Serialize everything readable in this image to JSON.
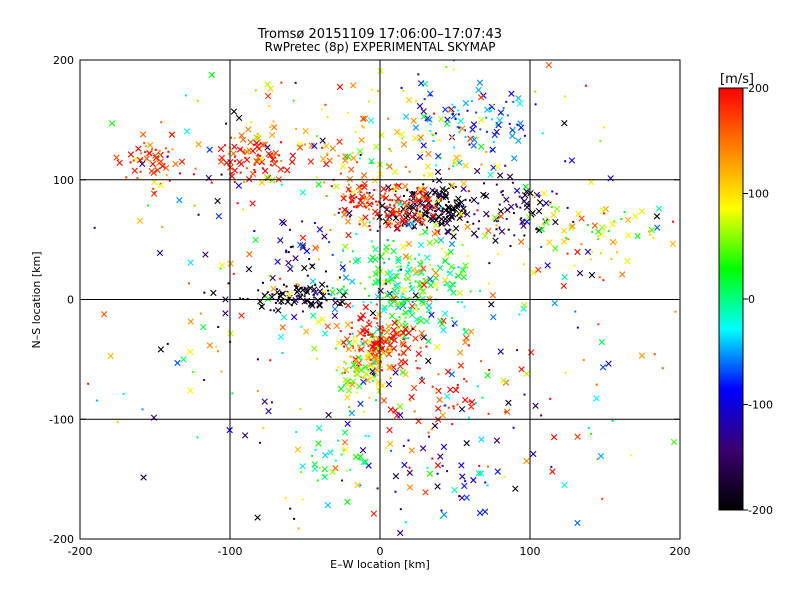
{
  "chart_data": {
    "type": "scatter",
    "title": "Tromsø 20151109 17:06:00–17:07:43",
    "subtitle": "RwPretec (8p) EXPERIMENTAL SKYMAP",
    "xlabel": "E–W location [km]",
    "ylabel": "N–S location [km]",
    "xlim": [
      -200,
      200
    ],
    "ylim": [
      -200,
      200
    ],
    "xticks": [
      -200,
      -100,
      0,
      100,
      200
    ],
    "yticks": [
      -200,
      -100,
      0,
      100,
      200
    ],
    "gridlines_x": [
      -100,
      0,
      100
    ],
    "gridlines_y": [
      -100,
      0,
      100
    ],
    "grid": true,
    "marker_styles": [
      "cross",
      "dot"
    ],
    "colorbar": {
      "label": "[m/s]",
      "range": [
        -200,
        200
      ],
      "ticks": [
        200,
        100,
        0,
        -100,
        -200
      ],
      "colormap": "rainbow+black",
      "stops": [
        "#000000",
        "#3a0070",
        "#0000ff",
        "#00ffff",
        "#00ff00",
        "#ffff00",
        "#ff8000",
        "#ff0000"
      ]
    },
    "clusters": [
      {
        "x": 35,
        "y": 75,
        "sx": 14,
        "sy": 10,
        "v": -200,
        "n": 170
      },
      {
        "x": 90,
        "y": 75,
        "sx": 15,
        "sy": 12,
        "v": -170,
        "n": 70
      },
      {
        "x": 10,
        "y": 78,
        "sx": 14,
        "sy": 10,
        "v": 190,
        "n": 110
      },
      {
        "x": -15,
        "y": 82,
        "sx": 10,
        "sy": 8,
        "v": 195,
        "n": 40
      },
      {
        "x": -85,
        "y": 118,
        "sx": 12,
        "sy": 10,
        "v": 190,
        "n": 80
      },
      {
        "x": -150,
        "y": 118,
        "sx": 10,
        "sy": 12,
        "v": 180,
        "n": 60
      },
      {
        "x": 15,
        "y": 12,
        "sx": 22,
        "sy": 20,
        "v": 15,
        "n": 240
      },
      {
        "x": -3,
        "y": -35,
        "sx": 12,
        "sy": 12,
        "v": 200,
        "n": 140
      },
      {
        "x": -12,
        "y": -60,
        "sx": 10,
        "sy": 12,
        "v": 80,
        "n": 90
      },
      {
        "x": -55,
        "y": 3,
        "sx": 22,
        "sy": 6,
        "v": -200,
        "n": 90
      },
      {
        "x": -55,
        "y": 40,
        "sx": 12,
        "sy": 10,
        "v": -120,
        "n": 25
      },
      {
        "x": 60,
        "y": 145,
        "sx": 22,
        "sy": 15,
        "v": -60,
        "n": 90
      },
      {
        "x": 0,
        "y": 130,
        "sx": 40,
        "sy": 30,
        "v": 120,
        "n": 110
      },
      {
        "x": 140,
        "y": 55,
        "sx": 25,
        "sy": 15,
        "v": 90,
        "n": 60
      },
      {
        "x": 40,
        "y": -80,
        "sx": 28,
        "sy": 30,
        "v": 190,
        "n": 70
      },
      {
        "x": -30,
        "y": -130,
        "sx": 15,
        "sy": 15,
        "v": 40,
        "n": 30
      },
      {
        "x": 50,
        "y": -145,
        "sx": 30,
        "sy": 20,
        "v": -90,
        "n": 40
      },
      {
        "x": 0,
        "y": 0,
        "sx": 110,
        "sy": 100,
        "v": null,
        "n": 420
      }
    ]
  }
}
